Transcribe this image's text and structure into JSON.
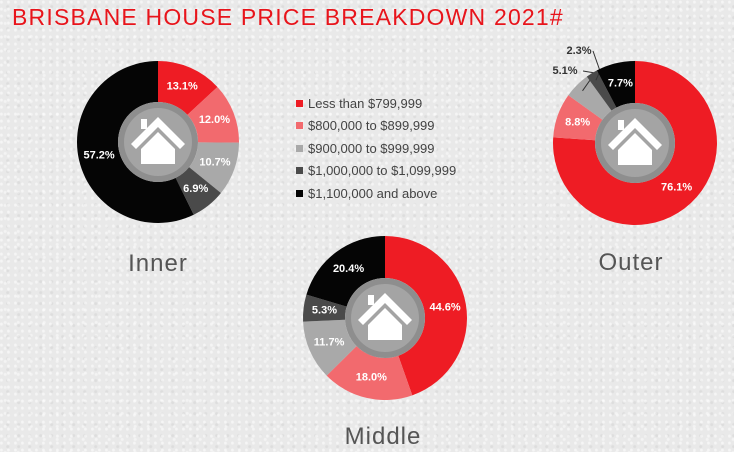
{
  "title": "BRISBANE HOUSE PRICE BREAKDOWN 2021#",
  "colors": [
    "#ee1c24",
    "#f26a6e",
    "#a9a9a9",
    "#4a4a4a",
    "#050505"
  ],
  "legend": [
    "Less than $799,999",
    "$800,000 to $899,999",
    "$900,000 to $999,999",
    "$1,000,000 to $1,099,999",
    "$1,100,000 and above"
  ],
  "chart_data": [
    {
      "type": "pie",
      "title": "Inner",
      "categories": [
        "Less than $799,999",
        "$800,000 to $899,999",
        "$900,000 to $999,999",
        "$1,000,000 to $1,099,999",
        "$1,100,000 and above"
      ],
      "values": [
        13.1,
        12.0,
        10.7,
        6.9,
        57.2
      ],
      "labels": [
        "13.1%",
        "12.0%",
        "10.7%",
        "6.9%",
        "57.2%"
      ]
    },
    {
      "type": "pie",
      "title": "Middle",
      "categories": [
        "Less than $799,999",
        "$800,000 to $899,999",
        "$900,000 to $999,999",
        "$1,000,000 to $1,099,999",
        "$1,100,000 and above"
      ],
      "values": [
        44.6,
        18.0,
        11.7,
        5.3,
        20.4
      ],
      "labels": [
        "44.6%",
        "18.0%",
        "11.7%",
        "5.3%",
        "20.4%"
      ]
    },
    {
      "type": "pie",
      "title": "Outer",
      "categories": [
        "Less than $799,999",
        "$800,000 to $899,999",
        "$900,000 to $999,999",
        "$1,000,000 to $1,099,999",
        "$1,100,000 and above"
      ],
      "values": [
        76.1,
        8.8,
        5.1,
        2.3,
        7.7
      ],
      "labels": [
        "76.1%",
        "8.8%",
        "5.1%",
        "2.3%",
        "7.7%"
      ]
    }
  ]
}
